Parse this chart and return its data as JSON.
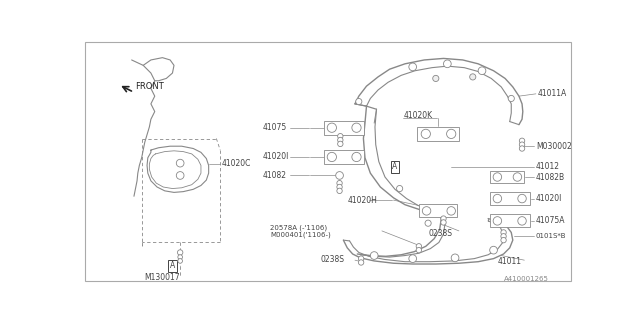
{
  "bg_color": "#ffffff",
  "line_color": "#888888",
  "text_color": "#444444",
  "diagram_id": "A410001265",
  "fig_w": 6.4,
  "fig_h": 3.2,
  "dpi": 100,
  "xlim": [
    0,
    640
  ],
  "ylim": [
    0,
    320
  ]
}
